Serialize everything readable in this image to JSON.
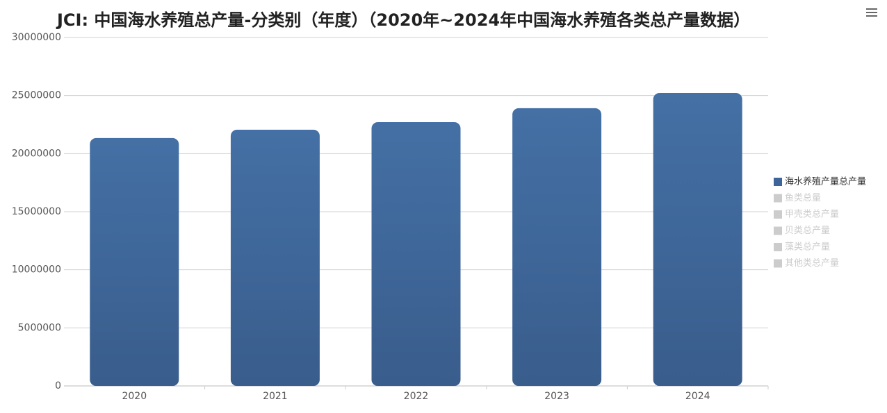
{
  "chart_data": {
    "type": "bar",
    "title": "JCI: 中国海水养殖总产量-分类别（年度）（2020年~2024年中国海水养殖各类总产量数据）",
    "categories": [
      "2020",
      "2021",
      "2022",
      "2023",
      "2024"
    ],
    "series": [
      {
        "name": "海水养殖产量总产量",
        "color": "#3e6599",
        "visible": true,
        "values": [
          21340000,
          22060000,
          22710000,
          23910000,
          25220000
        ]
      },
      {
        "name": "鱼类总量",
        "visible": false,
        "values": [
          null,
          null,
          null,
          null,
          null
        ]
      },
      {
        "name": "甲壳类总产量",
        "visible": false,
        "values": [
          null,
          null,
          null,
          null,
          null
        ]
      },
      {
        "name": "贝类总产量",
        "visible": false,
        "values": [
          null,
          null,
          null,
          null,
          null
        ]
      },
      {
        "name": "藻类总产量",
        "visible": false,
        "values": [
          null,
          null,
          null,
          null,
          null
        ]
      },
      {
        "name": "其他类总产量",
        "visible": false,
        "values": [
          null,
          null,
          null,
          null,
          null
        ]
      }
    ],
    "ylim": [
      0,
      30000000
    ],
    "yticks": [
      0,
      5000000,
      10000000,
      15000000,
      20000000,
      25000000,
      30000000
    ],
    "grid": true,
    "legend": "right"
  }
}
